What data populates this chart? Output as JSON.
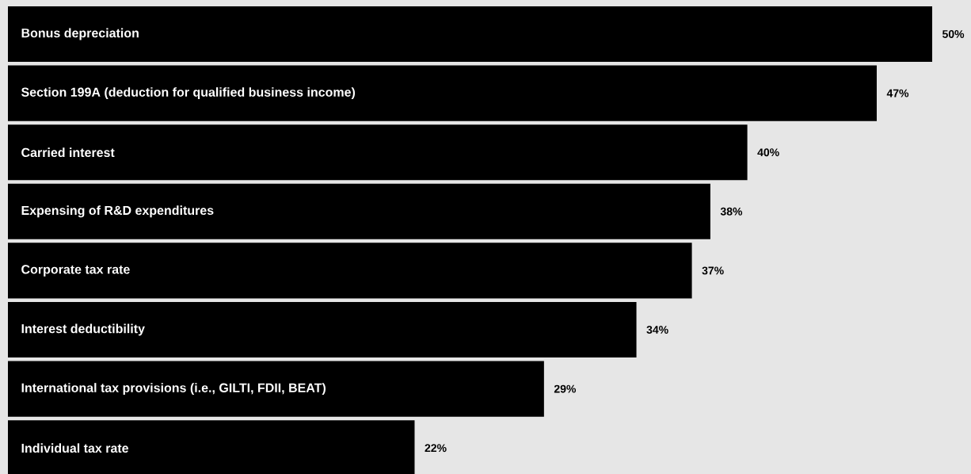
{
  "chart_data": {
    "type": "bar",
    "orientation": "horizontal",
    "color": "#000000",
    "categories": [
      "Bonus depreciation",
      "Section 199A (deduction for qualified business income)",
      "Carried interest",
      "Expensing of R&D expenditures",
      "Corporate tax rate",
      "Interest deductibility",
      "International tax provisions (i.e., GILTI, FDII, BEAT)",
      "Individual tax rate"
    ],
    "values": [
      50,
      47,
      40,
      38,
      37,
      34,
      29,
      22
    ],
    "value_labels": [
      "50%",
      "47%",
      "40%",
      "38%",
      "37%",
      "34%",
      "29%",
      "22%"
    ]
  }
}
